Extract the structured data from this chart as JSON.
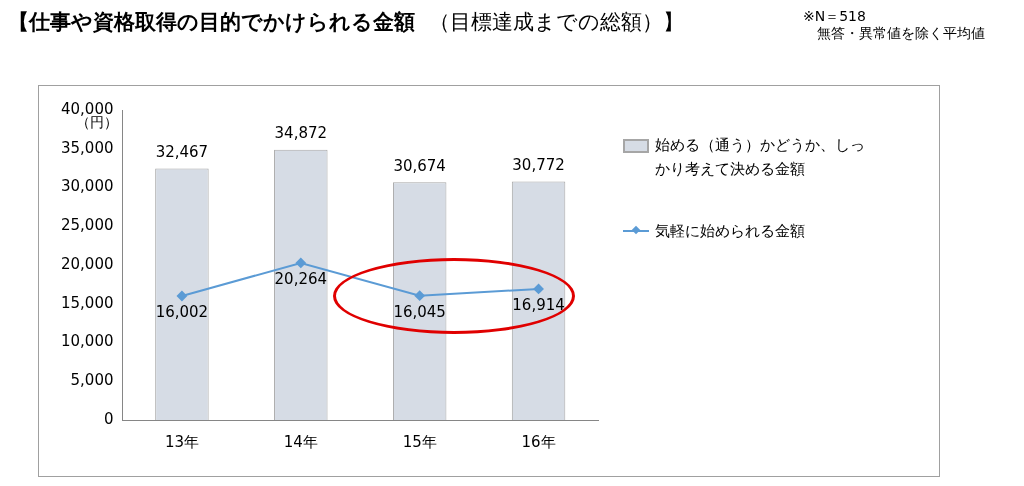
{
  "chart_data": {
    "type": "bar",
    "title": "【仕事や資格取得の目的でかけられる金額",
    "subtitle": "（目標達成までの総額）】",
    "annotations": [
      "※N＝518",
      "無答・異常値を除く平均値"
    ],
    "ylabel": "（円）",
    "categories": [
      "13年",
      "14年",
      "15年",
      "16年"
    ],
    "series": [
      {
        "name": "始める（通う）かどうか、しっかり考えて決める金額",
        "color": "#d6dce5",
        "values": [
          32467,
          34872,
          30674,
          30772
        ],
        "value_labels": [
          "32,467",
          "34,872",
          "30,674",
          "30,772"
        ]
      },
      {
        "name": "気軽に始められる金額",
        "type": "line",
        "color": "#5b9bd5",
        "values": [
          16002,
          20264,
          16045,
          16914
        ],
        "value_labels": [
          "16,002",
          "20,264",
          "16,045",
          "16,914"
        ]
      }
    ],
    "ylim": [
      0,
      40000
    ],
    "yticks": [
      {
        "value": 0,
        "label": "0"
      },
      {
        "value": 5000,
        "label": "5,000"
      },
      {
        "value": 10000,
        "label": "10,000"
      },
      {
        "value": 15000,
        "label": "15,000"
      },
      {
        "value": 20000,
        "label": "20,000"
      },
      {
        "value": 25000,
        "label": "25,000"
      },
      {
        "value": 30000,
        "label": "30,000"
      },
      {
        "value": 35000,
        "label": "35,000"
      },
      {
        "value": 40000,
        "label": "40,000"
      }
    ],
    "grid": false,
    "legend": "right",
    "marker": "diamond"
  }
}
